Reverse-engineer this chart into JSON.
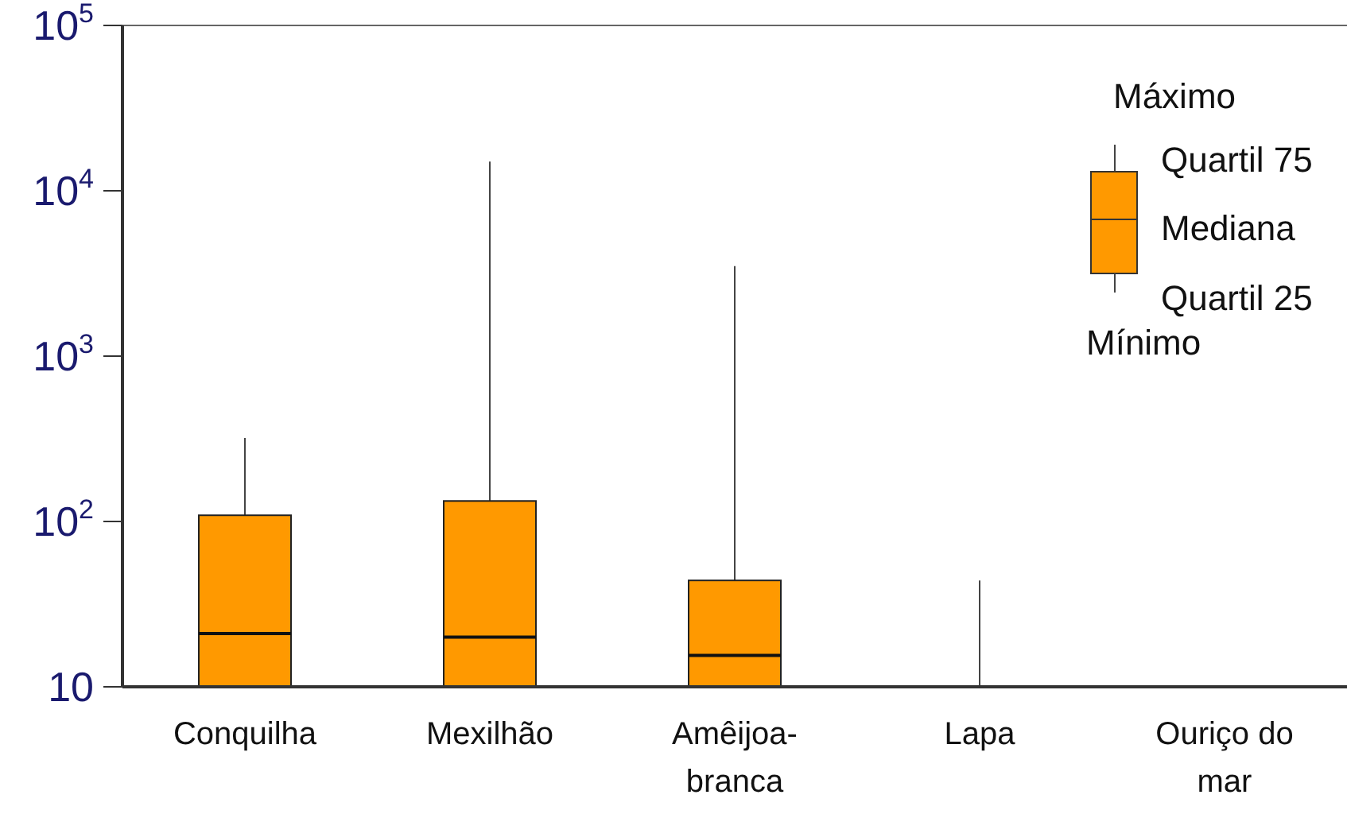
{
  "chart_data": {
    "type": "box",
    "categories": [
      "Conquilha",
      "Mexilhão",
      "Amêijoa-branca",
      "Lapa",
      "Ouriço do mar"
    ],
    "boxes": [
      {
        "low": 10,
        "q1": 10,
        "median": 21,
        "q3": 109,
        "high": 320
      },
      {
        "low": 10,
        "q1": 10,
        "median": 20,
        "q3": 133,
        "high": 15000
      },
      {
        "low": 10,
        "q1": 10,
        "median": 15.5,
        "q3": 44,
        "high": 3500
      },
      {
        "low": 10,
        "q1": 10,
        "median": 10,
        "q3": 10,
        "high": 44
      },
      {
        "low": 10,
        "q1": 10,
        "median": 10,
        "q3": 10,
        "high": 10
      }
    ],
    "color": "#ff9900",
    "log": true,
    "grid": false,
    "ylim": [
      10,
      100000
    ],
    "yticks": [
      10,
      {
        "value": 100,
        "label": "10$^{2}$"
      },
      {
        "value": 1000,
        "label": "10$^{3}$"
      },
      {
        "value": 10000,
        "label": "10$^{4}$"
      },
      {
        "value": 100000,
        "label": "10$^{5}$"
      }
    ],
    "annotations": [
      "Máximo",
      "Quartil 75",
      "Mediana",
      "Quartil 25",
      "Mínimo"
    ]
  }
}
